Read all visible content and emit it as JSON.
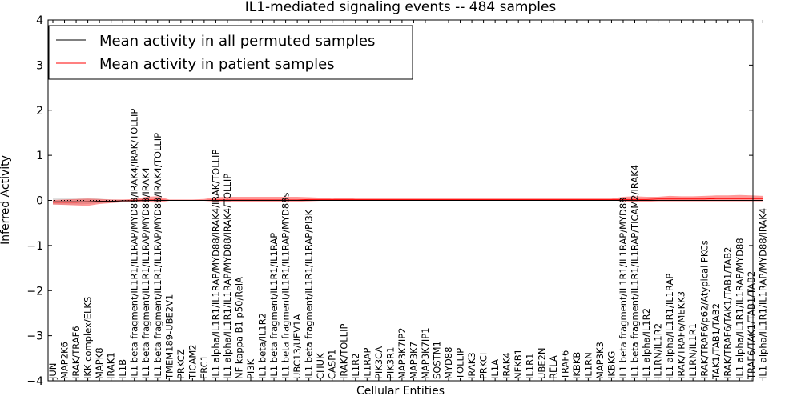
{
  "chart_data": {
    "type": "line",
    "title": "IL1-mediated signaling events -- 484 samples",
    "xlabel": "Cellular Entities",
    "ylabel": "Inferred Activity",
    "ylim": [
      -4,
      4
    ],
    "yticks": [
      "−4",
      "−3",
      "−2",
      "−1",
      "0",
      "1",
      "2",
      "3",
      "4"
    ],
    "ytick_values": [
      -4,
      -3,
      -2,
      -1,
      0,
      1,
      2,
      3,
      4
    ],
    "legend_position": "top-left",
    "categories": [
      "JUN",
      "MAP2K6",
      "IRAK/TRAF6",
      "IKK complex/ELKS",
      "MAPK8",
      "IRAK1",
      "IL1B",
      "IL1 beta fragment/IL1R1/IL1RAP/MYD88/IRAK4/IRAK/TOLLIP",
      "IL1 beta fragment/IL1R1/IL1RAP/MYD88/IRAK4",
      "IL1 beta fragment/IL1R1/IL1RAP/MYD88/IRAK4/TOLLIP",
      "TMEM189-UBE2V1",
      "PRKCZ",
      "TICAM2",
      "ERC1",
      "IL1 alpha/IL1R1/IL1RAP/MYD88/IRAK4/IRAK/TOLLIP",
      "IL1 alpha/IL1R1/IL1RAP/MYD88/IRAK4/TOLLIP",
      "NF kappa B1 p50/RelA",
      "PI3K",
      "IL1 beta/IL1R2",
      "IL1 beta fragment/IL1R1/IL1RAP",
      "IL1 beta fragment/IL1R1/IL1RAP/MYD88s",
      "UBC13/UEV1A",
      "IL1 beta fragment/IL1R1/IL1RAP/PI3K",
      "CHUK",
      "CASP1",
      "IRAK/TOLLIP",
      "IL1R2",
      "IL1RAP",
      "PIK3CA",
      "PIK3R1",
      "MAP3K7IP2",
      "MAP3K7",
      "MAP3K7IP1",
      "SQSTM1",
      "MYD88",
      "TOLLIP",
      "IRAK3",
      "PRKCI",
      "IL1A",
      "IRAK4",
      "NFKB1",
      "IL1R1",
      "UBE2N",
      "RELA",
      "TRAF6",
      "IKBKB",
      "IL1RN",
      "MAP3K3",
      "IKBKG",
      "IL1 beta fragment/IL1R1/IL1RAP/MYD88",
      "IL1 beta fragment/IL1R1/IL1RAP/TICAM2/IRAK4",
      "IL1 alpha/IL1R2",
      "IL1RN/IL1R2",
      "IL1 alpha/IL1R1/IL1RAP",
      "IRAK/TRAF6/MEKK3",
      "IL1RN/IL1R1",
      "IRAK/TRAF6/p62/Atypical PKCs",
      "TAK1/TAB1/TAB2",
      "IRAK/TRAF6/TAK1/TAB1/TAB2",
      "IL1 alpha/IL1R1/IL1RAP/MYD88",
      "TRAF6/TAK1/TAB1/TAB2",
      "IL1 alpha/IL1R1/IL1RAP/MYD88/IRAK4"
    ],
    "series": [
      {
        "name": "Mean activity in all permuted samples",
        "color": "#000000",
        "values": [
          -0.03,
          -0.03,
          -0.03,
          -0.03,
          -0.02,
          -0.02,
          -0.01,
          -0.01,
          0.0,
          0.0,
          0.0,
          0.0,
          0.0,
          0.0,
          0.0,
          0.0,
          0.0,
          0.0,
          0.0,
          0.0,
          0.0,
          0.0,
          0.0,
          0.0,
          0.0,
          0.0,
          0.0,
          0.0,
          0.0,
          0.0,
          0.0,
          0.0,
          0.0,
          0.0,
          0.0,
          0.0,
          0.0,
          0.0,
          0.0,
          0.0,
          0.0,
          0.0,
          0.0,
          0.0,
          0.0,
          0.0,
          0.0,
          0.0,
          0.0,
          0.0,
          0.0,
          0.0,
          0.0,
          0.0,
          0.0,
          0.0,
          0.0,
          0.0,
          0.0,
          0.0,
          0.0,
          0.0
        ],
        "band_lower": [
          -0.09,
          -0.09,
          -0.09,
          -0.08,
          -0.06,
          -0.05,
          -0.03,
          -0.02,
          -0.01,
          -0.01,
          -0.01,
          -0.01,
          -0.01,
          -0.01,
          -0.01,
          -0.01,
          -0.01,
          -0.01,
          -0.01,
          -0.01,
          -0.01,
          -0.01,
          -0.01,
          -0.01,
          -0.01,
          -0.01,
          -0.01,
          -0.01,
          -0.01,
          -0.01,
          -0.01,
          -0.01,
          -0.01,
          -0.01,
          -0.01,
          -0.01,
          -0.01,
          -0.01,
          -0.01,
          -0.01,
          -0.01,
          -0.01,
          -0.01,
          -0.01,
          -0.01,
          -0.01,
          -0.01,
          -0.01,
          -0.01,
          -0.01,
          -0.01,
          -0.01,
          -0.01,
          -0.01,
          -0.01,
          -0.01,
          -0.01,
          -0.01,
          -0.01,
          -0.01,
          -0.01,
          -0.01
        ],
        "band_upper": [
          0.05,
          0.06,
          0.04,
          0.06,
          0.04,
          0.02,
          0.01,
          0.01,
          0.01,
          0.01,
          0.01,
          0.01,
          0.01,
          0.01,
          0.01,
          0.01,
          0.01,
          0.01,
          0.01,
          0.01,
          0.01,
          0.01,
          0.01,
          0.01,
          0.01,
          0.01,
          0.01,
          0.01,
          0.01,
          0.01,
          0.01,
          0.01,
          0.01,
          0.01,
          0.01,
          0.01,
          0.01,
          0.01,
          0.01,
          0.01,
          0.01,
          0.01,
          0.01,
          0.01,
          0.01,
          0.01,
          0.01,
          0.01,
          0.01,
          0.01,
          0.01,
          0.01,
          0.01,
          0.01,
          0.01,
          0.01,
          0.01,
          0.01,
          0.01,
          0.01,
          0.01,
          0.01
        ]
      },
      {
        "name": "Mean activity in patient samples",
        "color": "#ff0000",
        "values": [
          -0.04,
          -0.04,
          -0.04,
          -0.03,
          -0.02,
          -0.02,
          -0.01,
          0.0,
          0.01,
          0.01,
          0.0,
          0.0,
          0.0,
          0.0,
          0.01,
          0.01,
          0.01,
          0.01,
          0.01,
          0.01,
          0.01,
          0.01,
          0.02,
          0.02,
          0.02,
          0.02,
          0.02,
          0.02,
          0.02,
          0.02,
          0.02,
          0.02,
          0.02,
          0.02,
          0.02,
          0.02,
          0.02,
          0.02,
          0.02,
          0.02,
          0.02,
          0.02,
          0.02,
          0.02,
          0.02,
          0.02,
          0.02,
          0.02,
          0.02,
          0.02,
          0.02,
          0.02,
          0.03,
          0.03,
          0.03,
          0.03,
          0.03,
          0.04,
          0.04,
          0.04,
          0.04,
          0.04
        ],
        "band_lower": [
          -0.09,
          -0.1,
          -0.11,
          -0.12,
          -0.08,
          -0.06,
          -0.04,
          -0.02,
          -0.04,
          -0.05,
          -0.01,
          -0.01,
          -0.01,
          -0.01,
          -0.03,
          -0.04,
          -0.04,
          -0.03,
          -0.03,
          -0.03,
          -0.03,
          -0.03,
          -0.02,
          -0.01,
          0.0,
          0.0,
          0.0,
          0.0,
          0.0,
          0.0,
          0.0,
          0.0,
          0.0,
          0.0,
          0.0,
          0.0,
          0.0,
          0.0,
          0.0,
          0.0,
          0.0,
          0.0,
          0.0,
          0.0,
          0.0,
          0.0,
          0.0,
          0.0,
          0.0,
          -0.02,
          -0.03,
          -0.03,
          -0.02,
          -0.02,
          -0.02,
          -0.02,
          -0.02,
          -0.02,
          -0.02,
          -0.02,
          -0.02,
          -0.02
        ],
        "band_upper": [
          0.01,
          0.02,
          0.03,
          0.04,
          0.03,
          0.02,
          0.02,
          0.03,
          0.08,
          0.09,
          0.02,
          0.02,
          0.02,
          0.03,
          0.07,
          0.08,
          0.08,
          0.08,
          0.08,
          0.08,
          0.08,
          0.08,
          0.07,
          0.06,
          0.04,
          0.06,
          0.04,
          0.04,
          0.04,
          0.04,
          0.04,
          0.04,
          0.04,
          0.04,
          0.04,
          0.04,
          0.04,
          0.04,
          0.04,
          0.04,
          0.04,
          0.04,
          0.04,
          0.04,
          0.04,
          0.04,
          0.04,
          0.04,
          0.04,
          0.08,
          0.09,
          0.08,
          0.08,
          0.1,
          0.09,
          0.09,
          0.1,
          0.11,
          0.11,
          0.12,
          0.11,
          0.1
        ]
      }
    ]
  }
}
